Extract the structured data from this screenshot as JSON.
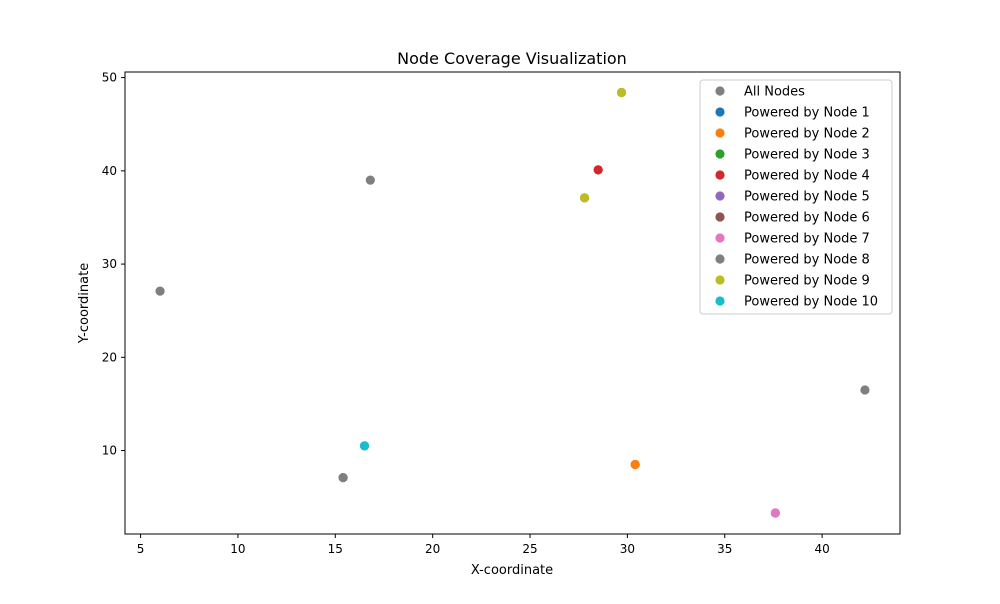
{
  "chart_data": {
    "type": "scatter",
    "title": "Node Coverage Visualization",
    "xlabel": "X-coordinate",
    "ylabel": "Y-coordinate",
    "xlim": [
      4.2,
      44.0
    ],
    "ylim": [
      1.05,
      50.6
    ],
    "xticks": [
      5,
      10,
      15,
      20,
      25,
      30,
      35,
      40
    ],
    "yticks": [
      10,
      20,
      30,
      40,
      50
    ],
    "grid": false,
    "legend_position": "top-right",
    "series": [
      {
        "name": "All Nodes",
        "color": "#7f7f7f",
        "points": [
          {
            "x": 16.8,
            "y": 39.0
          },
          {
            "x": 6.0,
            "y": 27.1
          },
          {
            "x": 42.2,
            "y": 16.5
          },
          {
            "x": 15.4,
            "y": 7.1
          },
          {
            "x": 16.5,
            "y": 10.5
          },
          {
            "x": 30.4,
            "y": 8.5
          },
          {
            "x": 37.6,
            "y": 3.3
          },
          {
            "x": 28.5,
            "y": 40.1
          },
          {
            "x": 27.8,
            "y": 37.1
          },
          {
            "x": 29.7,
            "y": 48.4
          }
        ]
      },
      {
        "name": "Powered by Node 1",
        "color": "#1f77b4",
        "points": []
      },
      {
        "name": "Powered by Node 2",
        "color": "#ff7f0e",
        "points": [
          {
            "x": 30.4,
            "y": 8.5
          }
        ]
      },
      {
        "name": "Powered by Node 3",
        "color": "#2ca02c",
        "points": []
      },
      {
        "name": "Powered by Node 4",
        "color": "#d62728",
        "points": [
          {
            "x": 28.5,
            "y": 40.1
          }
        ]
      },
      {
        "name": "Powered by Node 5",
        "color": "#9467bd",
        "points": []
      },
      {
        "name": "Powered by Node 6",
        "color": "#8c564b",
        "points": []
      },
      {
        "name": "Powered by Node 7",
        "color": "#e377c2",
        "points": [
          {
            "x": 37.6,
            "y": 3.3
          }
        ]
      },
      {
        "name": "Powered by Node 8",
        "color": "#7f7f7f",
        "points": [
          {
            "x": 15.4,
            "y": 7.1
          }
        ]
      },
      {
        "name": "Powered by Node 9",
        "color": "#bcbd22",
        "points": [
          {
            "x": 27.8,
            "y": 37.1
          },
          {
            "x": 29.7,
            "y": 48.4
          }
        ]
      },
      {
        "name": "Powered by Node 10",
        "color": "#17becf",
        "points": [
          {
            "x": 16.5,
            "y": 10.5
          }
        ]
      }
    ]
  }
}
